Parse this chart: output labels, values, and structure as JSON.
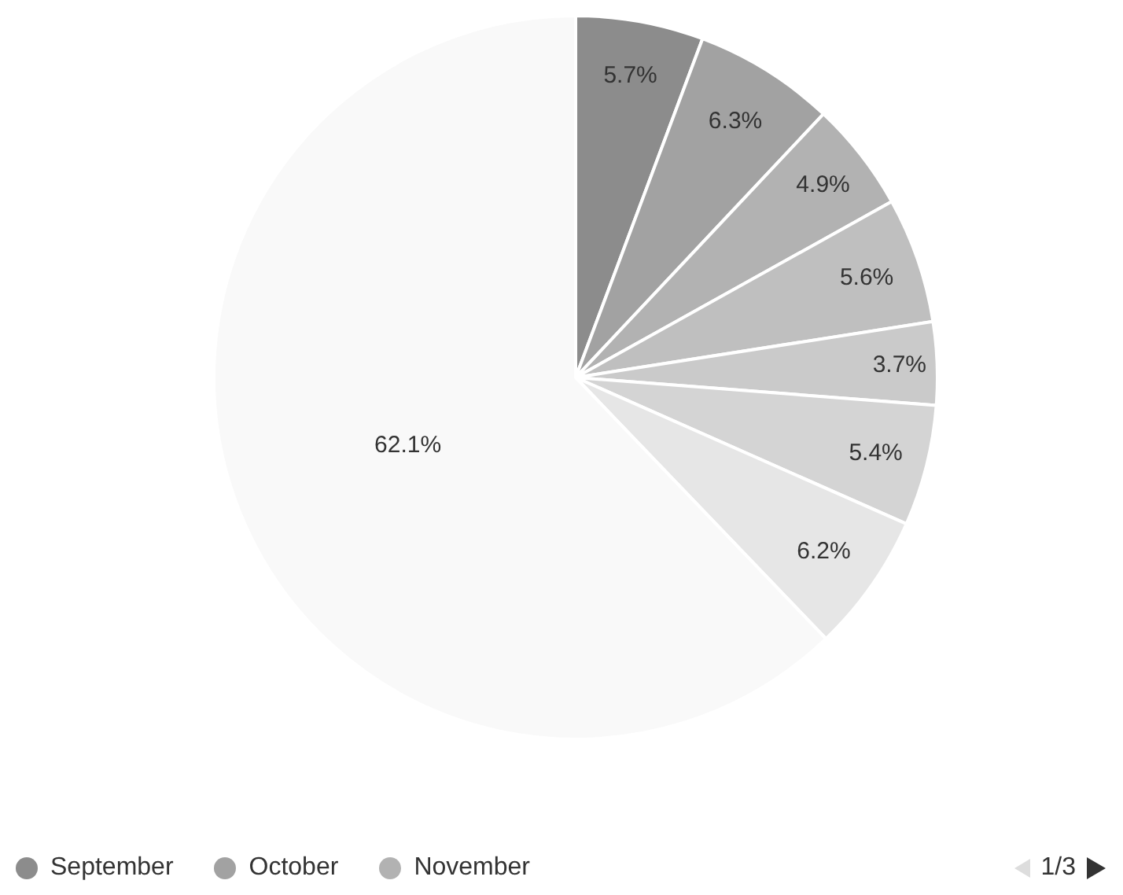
{
  "chart_data": {
    "type": "pie",
    "categories": [
      "September",
      "October",
      "November",
      null,
      null,
      null,
      null,
      null
    ],
    "values": [
      5.7,
      6.3,
      4.9,
      5.6,
      3.7,
      5.4,
      6.2,
      62.1
    ],
    "value_labels": [
      "5.7%",
      "6.3%",
      "4.9%",
      "5.6%",
      "3.7%",
      "5.4%",
      "6.2%",
      "62.1%"
    ],
    "colors": [
      "#8c8c8c",
      "#a2a2a2",
      "#b2b2b2",
      "#bfbfbf",
      "#cacaca",
      "#d4d4d4",
      "#e6e6e6",
      "#f9f9f9"
    ],
    "legend": "bottom",
    "annotations": [
      "1/3"
    ]
  }
}
